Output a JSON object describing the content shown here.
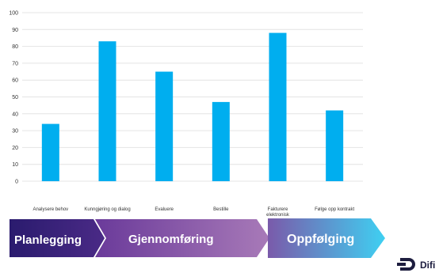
{
  "chart_data": {
    "type": "bar",
    "categories": [
      "Analysere behov",
      "Kunngjøring og dialog",
      "Evaluere",
      "Bestille",
      [
        "Fakturere",
        "elektronisk"
      ],
      "Følge opp kontrakt"
    ],
    "values": [
      34,
      83,
      65,
      47,
      88,
      42
    ],
    "yticks": [
      0,
      10,
      20,
      30,
      40,
      50,
      60,
      70,
      80,
      90,
      100
    ],
    "ylim": [
      0,
      100
    ],
    "grid": true,
    "bar_color": "#00aeef"
  },
  "phases": [
    {
      "label": "Planlegging",
      "color_start": "#2a1b6e",
      "color_end": "#4a2a86"
    },
    {
      "label": "Gjennomføring",
      "color_start": "#6a3a9a",
      "color_end": "#a87ab8"
    },
    {
      "label": "Oppfølging",
      "color_start": "#7a5aaa",
      "color_end": "#3fd0f2"
    }
  ],
  "logo": {
    "text": "Difi",
    "icon": "difi-logo-icon",
    "color": "#1d1d3f"
  }
}
